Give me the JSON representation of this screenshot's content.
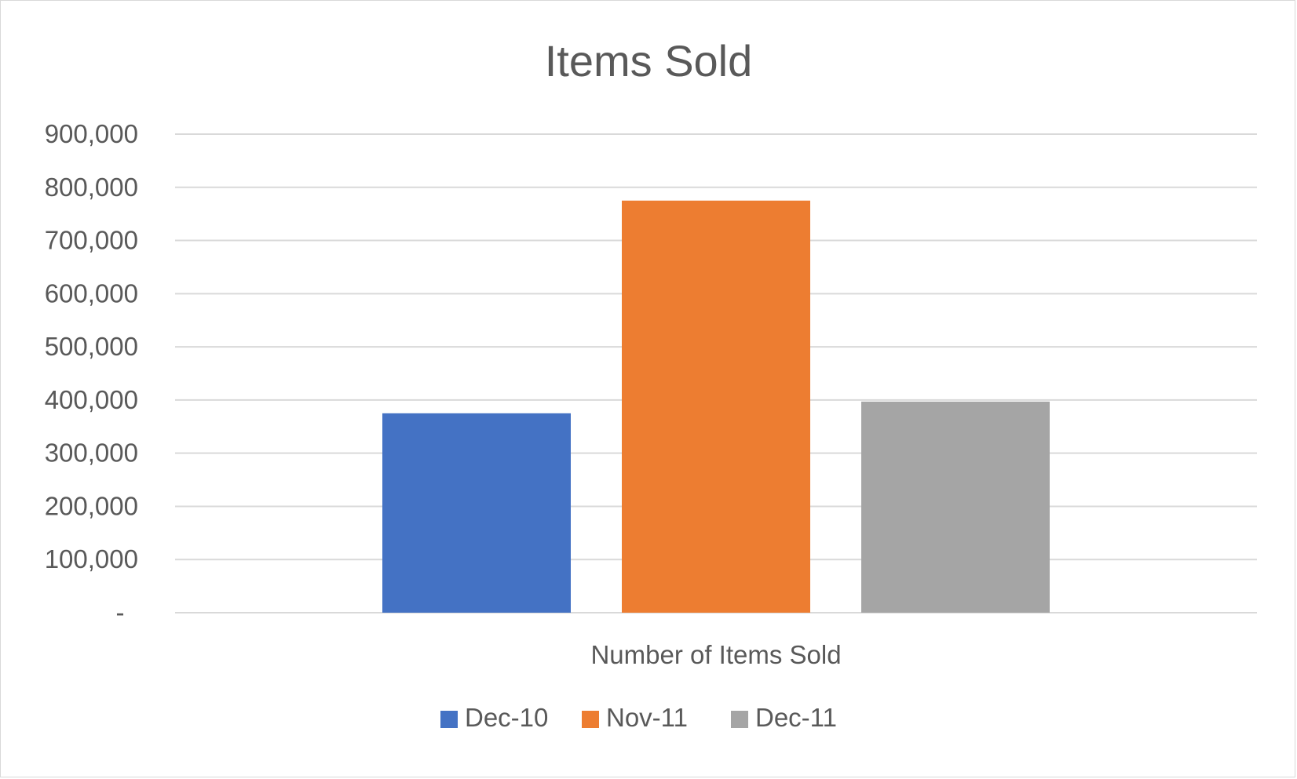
{
  "chart_data": {
    "type": "bar",
    "title": "Items Sold",
    "categories": [
      "Number of Items Sold"
    ],
    "xlabel": "",
    "ylabel": "",
    "ylim": [
      0,
      900000
    ],
    "yticks": [
      0,
      100000,
      200000,
      300000,
      400000,
      500000,
      600000,
      700000,
      800000,
      900000
    ],
    "ytick_labels": [
      "-",
      "100,000",
      "200,000",
      "300,000",
      "400,000",
      "500,000",
      "600,000",
      "700,000",
      "800,000",
      "900,000"
    ],
    "series": [
      {
        "name": "Dec-10",
        "values": [
          375000
        ],
        "color": "#4472C4"
      },
      {
        "name": "Nov-11",
        "values": [
          775000
        ],
        "color": "#ED7D31"
      },
      {
        "name": "Dec-11",
        "values": [
          397000
        ],
        "color": "#A5A5A5"
      }
    ],
    "grid": true,
    "gridline_color": "#d9d9d9",
    "legend_position": "bottom"
  }
}
